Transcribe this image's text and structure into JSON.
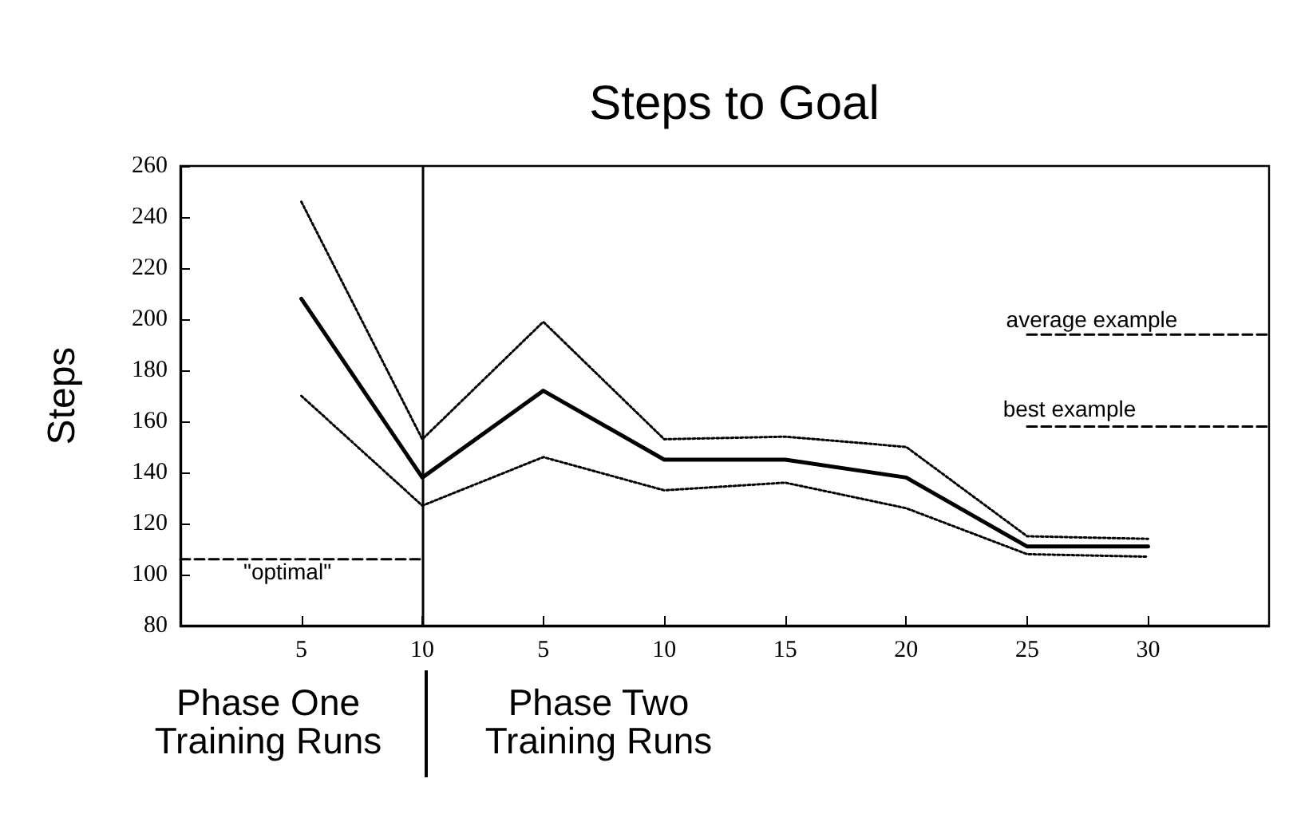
{
  "chart_data": {
    "type": "line",
    "title": "Steps to Goal",
    "ylabel": "Steps",
    "categories": [
      null,
      "5",
      "10",
      "5",
      "10",
      "15",
      "20",
      "25",
      "30",
      null
    ],
    "ylim": [
      80,
      260
    ],
    "yticks": [
      80,
      100,
      120,
      140,
      160,
      180,
      200,
      220,
      240,
      260
    ],
    "grid": false,
    "marker": "none",
    "series": [
      {
        "color": "#000000",
        "line_style": "solid",
        "values": [
          null,
          208,
          138,
          172,
          145,
          145,
          138,
          111,
          111,
          null
        ]
      },
      {
        "color": "#000000",
        "line_style": "dotted",
        "values": [
          null,
          246,
          153,
          199,
          153,
          154,
          150,
          115,
          114,
          null
        ]
      },
      {
        "color": "#000000",
        "line_style": "dotted",
        "values": [
          null,
          170,
          127,
          146,
          133,
          136,
          126,
          108,
          107,
          null
        ]
      },
      {
        "color": "#000000",
        "line_style": "dashed",
        "values": [
          106,
          106,
          106,
          null,
          null,
          null,
          null,
          null,
          null,
          null
        ]
      },
      {
        "color": "#000000",
        "line_style": "dashed",
        "values": [
          null,
          null,
          null,
          null,
          null,
          null,
          null,
          194,
          194,
          194
        ]
      },
      {
        "color": "#000000",
        "line_style": "dashed",
        "values": [
          null,
          null,
          null,
          null,
          null,
          null,
          null,
          158,
          158,
          158
        ]
      }
    ],
    "ref_lines": [
      {
        "axis": "x",
        "value": "10",
        "color": "#000000"
      }
    ],
    "annotations": [
      "\"optimal\"",
      "average example",
      "best example",
      "Phase One\nTraining Runs",
      "Phase Two\nTraining Runs"
    ]
  }
}
